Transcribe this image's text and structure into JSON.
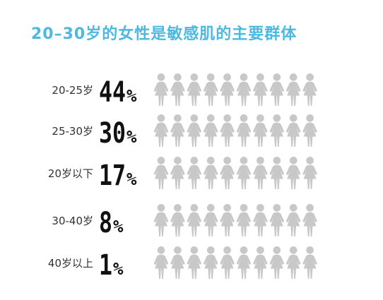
{
  "chart_data": {
    "type": "bar",
    "title": "20–30岁的女性是敏感肌的主要群体",
    "categories": [
      "20-25岁",
      "25-30岁",
      "20岁以下",
      "30-40岁",
      "40岁以上"
    ],
    "values": [
      44,
      30,
      17,
      8,
      1
    ],
    "value_labels": [
      "44%",
      "30%",
      "17%",
      "8%",
      "1%"
    ],
    "unit": "%",
    "icons_per_row": 10,
    "icon": "woman-figure-icon",
    "colors": {
      "title": "#4db8e0",
      "filled": "#f0866b",
      "empty": "#c8c8c8"
    }
  }
}
